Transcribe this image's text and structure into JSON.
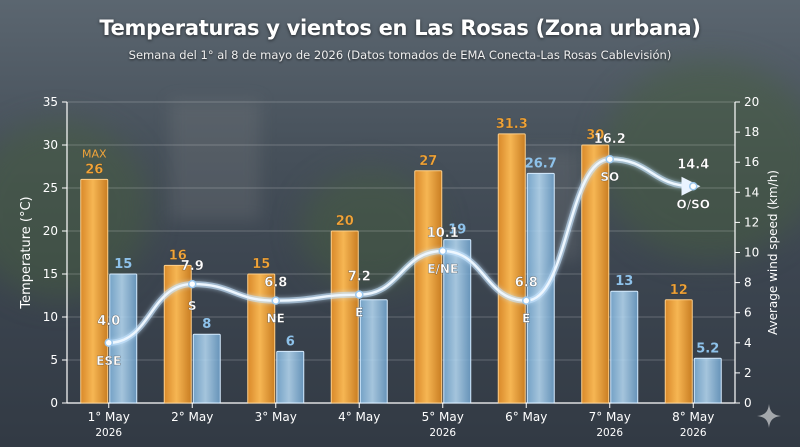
{
  "title": "Temperaturas y vientos en Las Rosas (Zona urbana)",
  "subtitle": "Semana del 1° al 8 de mayo de 2026 (Datos tomados de EMA Conecta-Las Rosas Cablevisión)",
  "chart_data": {
    "type": "bar",
    "categories": [
      "1° May 2026",
      "2° May",
      "3° May",
      "4° May",
      "5° May 2026",
      "6° May",
      "7° May 2026",
      "8° May 2026"
    ],
    "category_lines": [
      [
        "1° May",
        "2026"
      ],
      [
        "2° May",
        ""
      ],
      [
        "3° May",
        ""
      ],
      [
        "4° May",
        ""
      ],
      [
        "5° May",
        "2026"
      ],
      [
        "6° May",
        ""
      ],
      [
        "7° May",
        "2026"
      ],
      [
        "8° May",
        "2026"
      ]
    ],
    "ylabel": "Temperature (°C)",
    "ylabel_right": "Average wind speed (km/h)",
    "ylim": [
      0,
      35
    ],
    "ylim_right": [
      0,
      20
    ],
    "yticks": [
      0,
      5,
      10,
      15,
      20,
      25,
      30,
      35
    ],
    "yticks_right": [
      0,
      2,
      4,
      6,
      8,
      10,
      12,
      14,
      16,
      18,
      20
    ],
    "max_marker": "MAX",
    "series": [
      {
        "axis": "left",
        "values": [
          26,
          16,
          15,
          20,
          27,
          31.3,
          30,
          12
        ],
        "labels": [
          "26",
          "16",
          "15",
          "20",
          "27",
          "31.3",
          "30",
          "12"
        ],
        "color": "#f0a43a"
      },
      {
        "axis": "left",
        "values": [
          15,
          8,
          6,
          12,
          19,
          26.7,
          13,
          5.2
        ],
        "labels": [
          "15",
          "8",
          "6",
          "",
          "19",
          "26.7",
          "13",
          "5.2"
        ],
        "color": "#8ec2ea"
      },
      {
        "axis": "right",
        "type": "line",
        "values": [
          4.0,
          7.9,
          6.8,
          7.2,
          10.1,
          6.8,
          16.2,
          14.4
        ],
        "labels": [
          "4.0",
          "7.9",
          "6.8",
          "7.2",
          "10.1",
          "6.8",
          "16.2",
          "14.4"
        ],
        "directions": [
          "ESE",
          "S",
          "NE",
          "E",
          "E/NE",
          "E",
          "SO",
          "O/SO"
        ],
        "color": "#ffffff"
      }
    ],
    "grid": true
  },
  "colors": {
    "max": "#f0a43a",
    "min": "#8ec2ea",
    "wind": "#ffffff"
  },
  "icons": {
    "corner": "sparkle-icon"
  }
}
